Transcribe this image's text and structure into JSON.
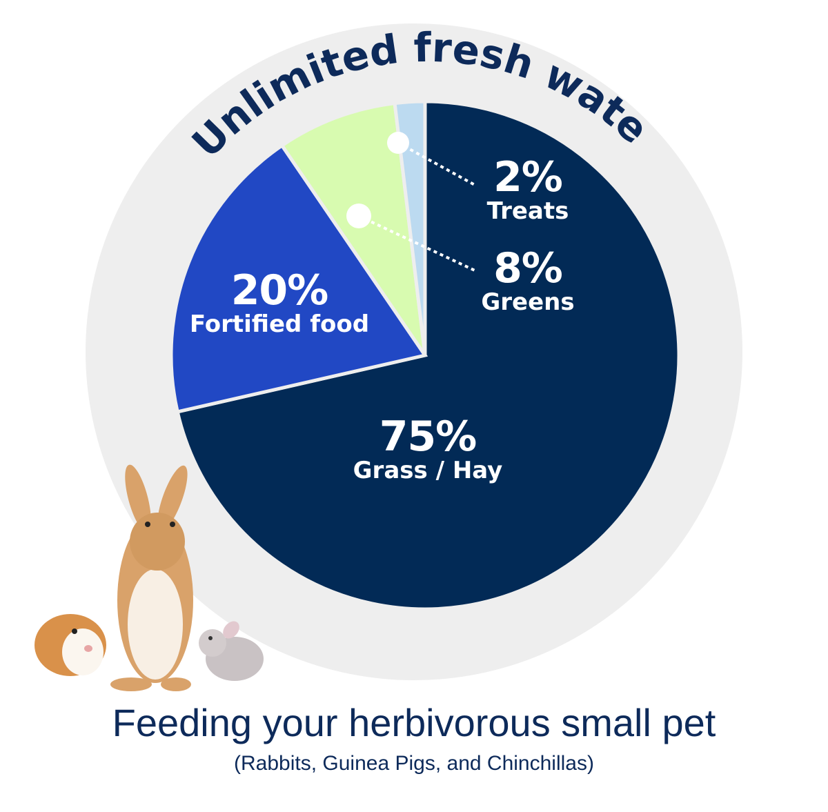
{
  "chart_data": {
    "type": "pie",
    "title": "Feeding your herbivorous small pet",
    "subtitle": "(Rabbits, Guinea Pigs, and Chinchillas)",
    "ring_label": "Unlimited fresh water",
    "slices": [
      {
        "label": "Grass / Hay",
        "value": 75,
        "display": "75%",
        "color": "#022a56"
      },
      {
        "label": "Fortified food",
        "value": 20,
        "display": "20%",
        "color": "#2148c4"
      },
      {
        "label": "Greens",
        "value": 8,
        "display": "8%",
        "color": "#d8fbb0"
      },
      {
        "label": "Treats",
        "value": 2,
        "display": "2%",
        "color": "#bcdaf0"
      }
    ],
    "ring_color": "#eeeeee",
    "text_color": "#0d2a5a"
  }
}
